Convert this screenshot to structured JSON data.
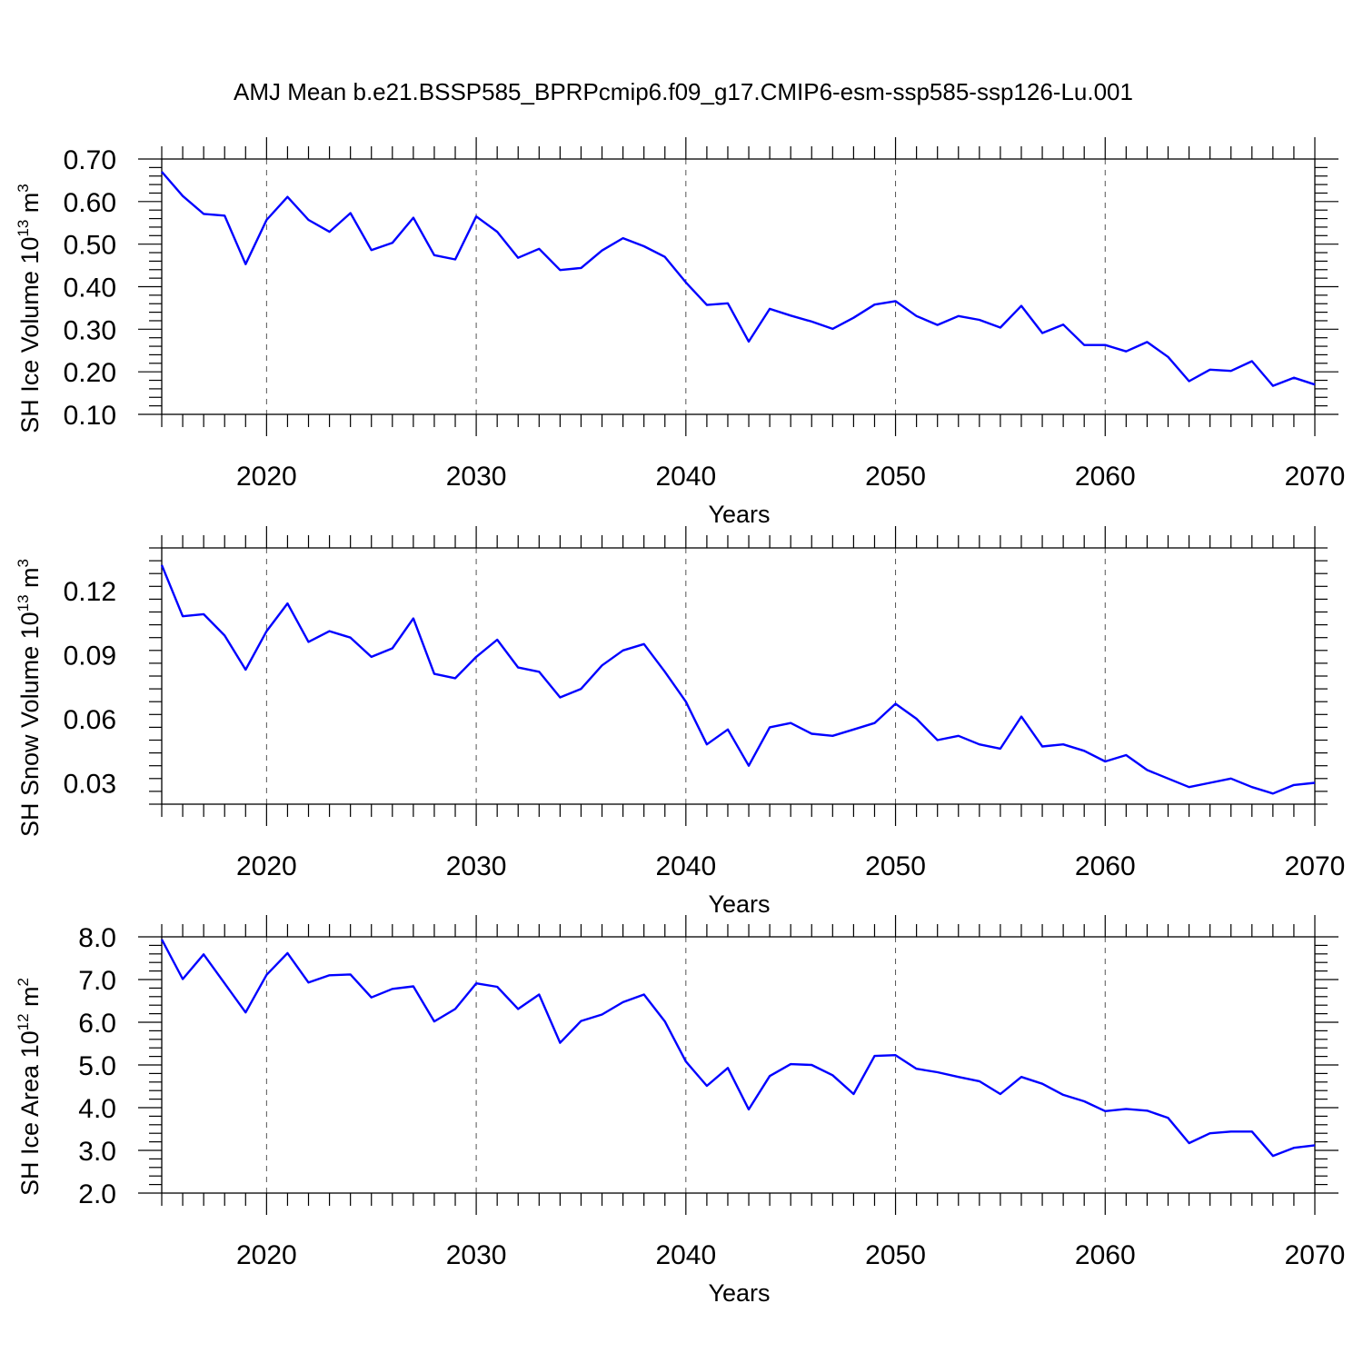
{
  "figure_title": "AMJ Mean b.e21.BSSP585_BPRPcmip6.f09_g17.CMIP6-esm-ssp585-ssp126-Lu.001",
  "line_color": "#0000ff",
  "chart_data": [
    {
      "type": "line",
      "title": "AMJ Mean b.e21.BSSP585_BPRPcmip6.f09_g17.CMIP6-esm-ssp585-ssp126-Lu.001",
      "xlabel": "Years",
      "ylabel": {
        "main": "SH Ice Volume 10",
        "exp": "13",
        "unit": " m",
        "unit_exp": "3"
      },
      "xlim": [
        2015,
        2070
      ],
      "ylim": [
        0.1,
        0.7
      ],
      "x_major_ticks": [
        2020,
        2030,
        2040,
        2050,
        2060,
        2070
      ],
      "x_tick_labels": [
        "2020",
        "2030",
        "2040",
        "2050",
        "2060",
        "2070"
      ],
      "y_major_ticks": [
        0.1,
        0.2,
        0.3,
        0.4,
        0.5,
        0.6,
        0.7
      ],
      "y_tick_labels": [
        "0.10",
        "0.20",
        "0.30",
        "0.40",
        "0.50",
        "0.60",
        "0.70"
      ],
      "y_minor_step": 0.02,
      "grid": "x-dashed",
      "series": [
        {
          "name": "SH Ice Volume",
          "x": [
            2015,
            2016,
            2017,
            2018,
            2019,
            2020,
            2021,
            2022,
            2023,
            2024,
            2025,
            2026,
            2027,
            2028,
            2029,
            2030,
            2031,
            2032,
            2033,
            2034,
            2035,
            2036,
            2037,
            2038,
            2039,
            2040,
            2041,
            2042,
            2043,
            2044,
            2045,
            2046,
            2047,
            2048,
            2049,
            2050,
            2051,
            2052,
            2053,
            2054,
            2055,
            2056,
            2057,
            2058,
            2059,
            2060,
            2061,
            2062,
            2063,
            2064,
            2065,
            2066,
            2067,
            2068,
            2069,
            2070
          ],
          "values": [
            0.67,
            0.613,
            0.571,
            0.567,
            0.453,
            0.557,
            0.611,
            0.557,
            0.529,
            0.573,
            0.486,
            0.503,
            0.562,
            0.474,
            0.464,
            0.565,
            0.529,
            0.468,
            0.489,
            0.439,
            0.444,
            0.485,
            0.514,
            0.495,
            0.47,
            0.41,
            0.357,
            0.361,
            0.271,
            0.348,
            0.332,
            0.318,
            0.301,
            0.327,
            0.358,
            0.366,
            0.331,
            0.31,
            0.331,
            0.322,
            0.304,
            0.355,
            0.291,
            0.311,
            0.263,
            0.263,
            0.248,
            0.27,
            0.235,
            0.178,
            0.205,
            0.202,
            0.225,
            0.167,
            0.186,
            0.17
          ]
        }
      ]
    },
    {
      "type": "line",
      "xlabel": "Years",
      "ylabel": {
        "main": "SH Snow Volume 10",
        "exp": "13",
        "unit": " m",
        "unit_exp": "3"
      },
      "xlim": [
        2015,
        2070
      ],
      "ylim": [
        0.02,
        0.14
      ],
      "x_major_ticks": [
        2020,
        2030,
        2040,
        2050,
        2060,
        2070
      ],
      "x_tick_labels": [
        "2020",
        "2030",
        "2040",
        "2050",
        "2060",
        "2070"
      ],
      "y_major_ticks": [
        0.03,
        0.06,
        0.09,
        0.12
      ],
      "y_tick_labels": [
        "0.03",
        "0.06",
        "0.09",
        "0.12"
      ],
      "y_minor_step": 0.006,
      "grid": "x-dashed",
      "series": [
        {
          "name": "SH Snow Volume",
          "x": [
            2015,
            2016,
            2017,
            2018,
            2019,
            2020,
            2021,
            2022,
            2023,
            2024,
            2025,
            2026,
            2027,
            2028,
            2029,
            2030,
            2031,
            2032,
            2033,
            2034,
            2035,
            2036,
            2037,
            2038,
            2039,
            2040,
            2041,
            2042,
            2043,
            2044,
            2045,
            2046,
            2047,
            2048,
            2049,
            2050,
            2051,
            2052,
            2053,
            2054,
            2055,
            2056,
            2057,
            2058,
            2059,
            2060,
            2061,
            2062,
            2063,
            2064,
            2065,
            2066,
            2067,
            2068,
            2069,
            2070
          ],
          "values": [
            0.132,
            0.108,
            0.109,
            0.099,
            0.083,
            0.101,
            0.114,
            0.096,
            0.101,
            0.098,
            0.089,
            0.093,
            0.107,
            0.081,
            0.079,
            0.089,
            0.097,
            0.084,
            0.082,
            0.07,
            0.074,
            0.085,
            0.092,
            0.095,
            0.082,
            0.068,
            0.048,
            0.055,
            0.038,
            0.056,
            0.058,
            0.053,
            0.052,
            0.055,
            0.058,
            0.067,
            0.06,
            0.05,
            0.052,
            0.048,
            0.046,
            0.061,
            0.047,
            0.048,
            0.045,
            0.04,
            0.043,
            0.036,
            0.032,
            0.028,
            0.03,
            0.032,
            0.028,
            0.025,
            0.029,
            0.03
          ]
        }
      ]
    },
    {
      "type": "line",
      "xlabel": "Years",
      "ylabel": {
        "main": "SH Ice Area 10",
        "exp": "12",
        "unit": " m",
        "unit_exp": "2"
      },
      "xlim": [
        2015,
        2070
      ],
      "ylim": [
        2.0,
        8.0
      ],
      "x_major_ticks": [
        2020,
        2030,
        2040,
        2050,
        2060,
        2070
      ],
      "x_tick_labels": [
        "2020",
        "2030",
        "2040",
        "2050",
        "2060",
        "2070"
      ],
      "y_major_ticks": [
        2.0,
        3.0,
        4.0,
        5.0,
        6.0,
        7.0,
        8.0
      ],
      "y_tick_labels": [
        "2.0",
        "3.0",
        "4.0",
        "5.0",
        "6.0",
        "7.0",
        "8.0"
      ],
      "y_minor_step": 0.2,
      "grid": "x-dashed",
      "series": [
        {
          "name": "SH Ice Area",
          "x": [
            2015,
            2016,
            2017,
            2018,
            2019,
            2020,
            2021,
            2022,
            2023,
            2024,
            2025,
            2026,
            2027,
            2028,
            2029,
            2030,
            2031,
            2032,
            2033,
            2034,
            2035,
            2036,
            2037,
            2038,
            2039,
            2040,
            2041,
            2042,
            2043,
            2044,
            2045,
            2046,
            2047,
            2048,
            2049,
            2050,
            2051,
            2052,
            2053,
            2054,
            2055,
            2056,
            2057,
            2058,
            2059,
            2060,
            2061,
            2062,
            2063,
            2064,
            2065,
            2066,
            2067,
            2068,
            2069,
            2070
          ],
          "values": [
            7.94,
            7.01,
            7.59,
            6.91,
            6.23,
            7.11,
            7.62,
            6.93,
            7.1,
            7.12,
            6.58,
            6.78,
            6.84,
            6.02,
            6.31,
            6.91,
            6.83,
            6.31,
            6.65,
            5.52,
            6.03,
            6.18,
            6.47,
            6.65,
            6.02,
            5.08,
            4.51,
            4.93,
            3.96,
            4.74,
            5.02,
            5.0,
            4.76,
            4.32,
            5.21,
            5.23,
            4.91,
            4.83,
            4.72,
            4.62,
            4.32,
            4.72,
            4.56,
            4.3,
            4.15,
            3.92,
            3.97,
            3.93,
            3.76,
            3.17,
            3.4,
            3.44,
            3.44,
            2.87,
            3.06,
            3.12
          ]
        }
      ]
    }
  ]
}
